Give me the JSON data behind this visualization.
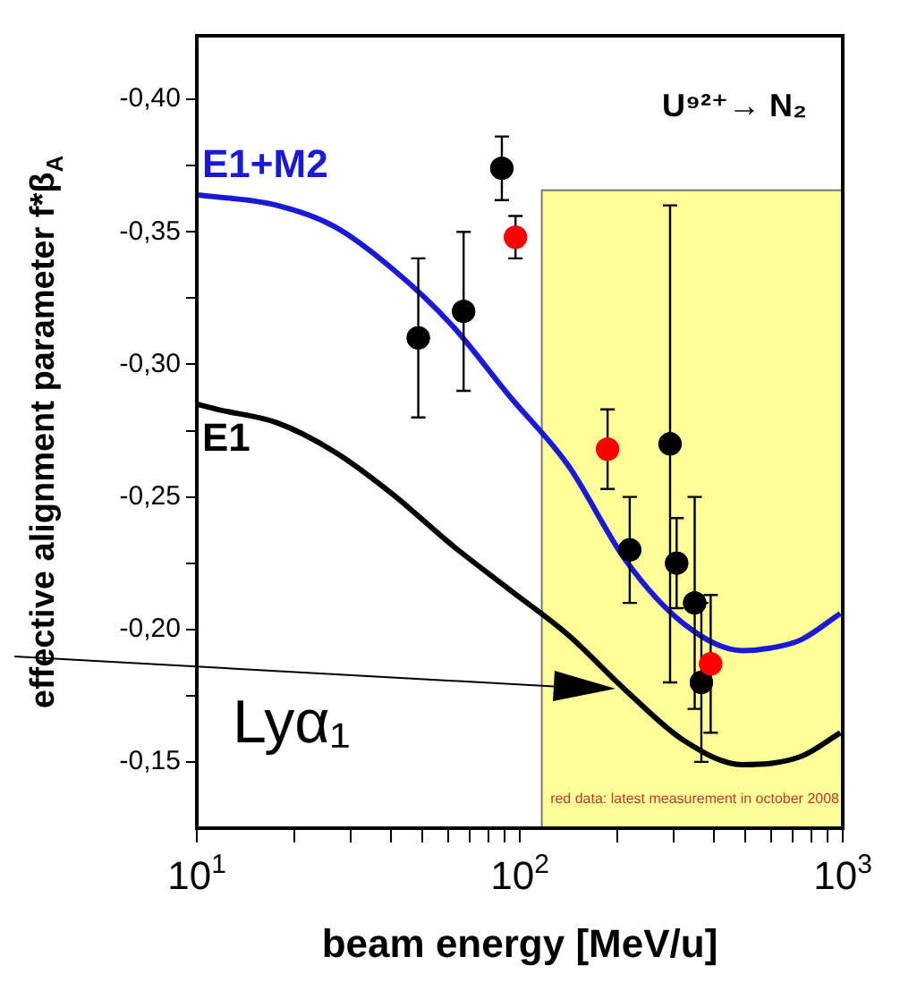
{
  "chart_data": {
    "type": "scatter",
    "title": "U⁹²⁺→ N₂",
    "xlabel": "beam energy [MeV/u]",
    "ylabel": "effective alignment parameter f*β$_{A}$",
    "log": "x",
    "grid": false,
    "legend": false,
    "xlim": [
      10,
      1000
    ],
    "xticks": [
      {
        "value": 10,
        "label": "10$^{1}$"
      },
      {
        "value": 20,
        "label": null
      },
      {
        "value": 30,
        "label": null
      },
      {
        "value": 40,
        "label": null
      },
      {
        "value": 50,
        "label": null
      },
      {
        "value": 60,
        "label": null
      },
      {
        "value": 70,
        "label": null
      },
      {
        "value": 80,
        "label": null
      },
      {
        "value": 90,
        "label": null
      },
      {
        "value": 100,
        "label": "10$^{2}$"
      },
      {
        "value": 200,
        "label": null
      },
      {
        "value": 300,
        "label": null
      },
      {
        "value": 400,
        "label": null
      },
      {
        "value": 500,
        "label": null
      },
      {
        "value": 600,
        "label": null
      },
      {
        "value": 700,
        "label": null
      },
      {
        "value": 800,
        "label": null
      },
      {
        "value": 900,
        "label": null
      },
      {
        "value": 1000,
        "label": "10$^{3}$"
      }
    ],
    "ylim": [
      -0.125,
      -0.424
    ],
    "yticks": [
      {
        "value": -0.4,
        "label": "-0,40"
      },
      {
        "value": -0.375,
        "label": null
      },
      {
        "value": -0.35,
        "label": "-0,35"
      },
      {
        "value": -0.325,
        "label": null
      },
      {
        "value": -0.3,
        "label": "-0,30"
      },
      {
        "value": -0.275,
        "label": null
      },
      {
        "value": -0.25,
        "label": "-0,25"
      },
      {
        "value": -0.225,
        "label": null
      },
      {
        "value": -0.2,
        "label": "-0,20"
      },
      {
        "value": -0.175,
        "label": null
      },
      {
        "value": -0.15,
        "label": "-0,15"
      }
    ],
    "bands": [
      {
        "axis": "x",
        "from": 117,
        "to": 1000,
        "label": "red data: latest measurement in october 2008",
        "color": "#ffff99"
      }
    ],
    "annotations": [
      "Lyα₁"
    ],
    "series": [
      {
        "name": "E1+M2",
        "type": "line",
        "marker": "none",
        "color": "#1a1ad6",
        "x": [
          10,
          17.7,
          26.7,
          40.4,
          61.4,
          93,
          141,
          213,
          323,
          489,
          600,
          740,
          983
        ],
        "values": [
          -0.364,
          -0.36,
          -0.352,
          -0.336,
          -0.315,
          -0.288,
          -0.262,
          -0.226,
          -0.202,
          -0.192,
          -0.193,
          -0.196,
          -0.206
        ]
      },
      {
        "name": "E1",
        "type": "line",
        "marker": "none",
        "color": "#000000",
        "x": [
          10,
          11.6,
          17.7,
          26.7,
          40.4,
          61.4,
          93,
          141,
          213,
          323,
          489,
          740,
          983
        ],
        "values": [
          -0.285,
          -0.283,
          -0.278,
          -0.267,
          -0.251,
          -0.232,
          -0.215,
          -0.198,
          -0.177,
          -0.158,
          -0.149,
          -0.152,
          -0.161
        ]
      },
      {
        "type": "scatter",
        "marker": "circle",
        "color": "#000000",
        "x": [
          48.5,
          67,
          88,
          219,
          292,
          306,
          348,
          365
        ],
        "values": [
          -0.31,
          -0.32,
          -0.374,
          -0.23,
          -0.27,
          -0.225,
          -0.21,
          -0.18
        ],
        "errors": [
          0.03,
          0.03,
          0.012,
          0.02,
          0.09,
          0.017,
          0.04,
          0.03
        ]
      },
      {
        "type": "scatter",
        "marker": "circle",
        "color": "#ff0000",
        "x": [
          97,
          187,
          390
        ],
        "values": [
          -0.348,
          -0.268,
          -0.187
        ],
        "errors": [
          0.008,
          0.015,
          0.026
        ]
      }
    ]
  }
}
